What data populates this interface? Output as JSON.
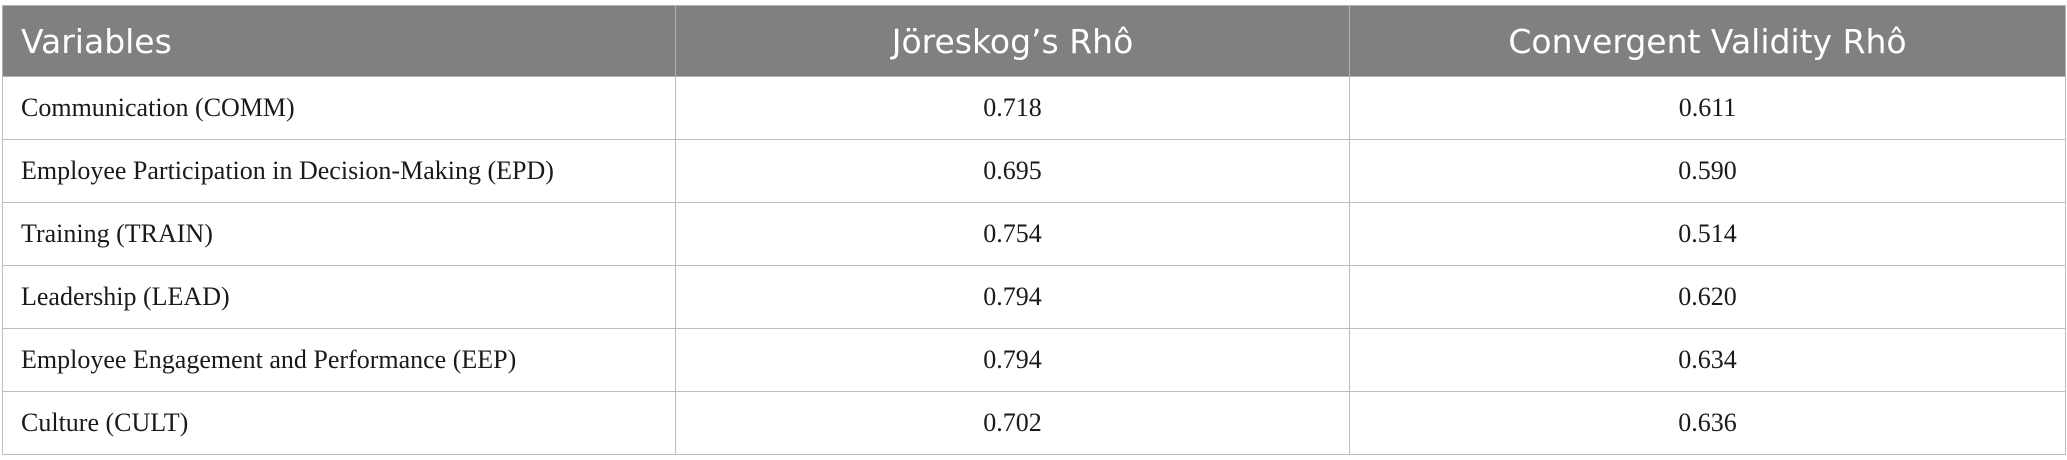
{
  "table": {
    "header": [
      "Variables",
      "Jöreskog’s Rhô",
      "Convergent Validity Rhô"
    ],
    "rows": [
      [
        "Communication (COMM)",
        "0.718",
        "0.611"
      ],
      [
        "Employee Participation in Decision-Making (EPD)",
        "0.695",
        "0.590"
      ],
      [
        "Training (TRAIN)",
        "0.754",
        "0.514"
      ],
      [
        "Leadership (LEAD)",
        "0.794",
        "0.620"
      ],
      [
        "Employee Engagement and Performance (EEP)",
        "0.794",
        "0.634"
      ],
      [
        "Culture (CULT)",
        "0.702",
        "0.636"
      ]
    ]
  }
}
